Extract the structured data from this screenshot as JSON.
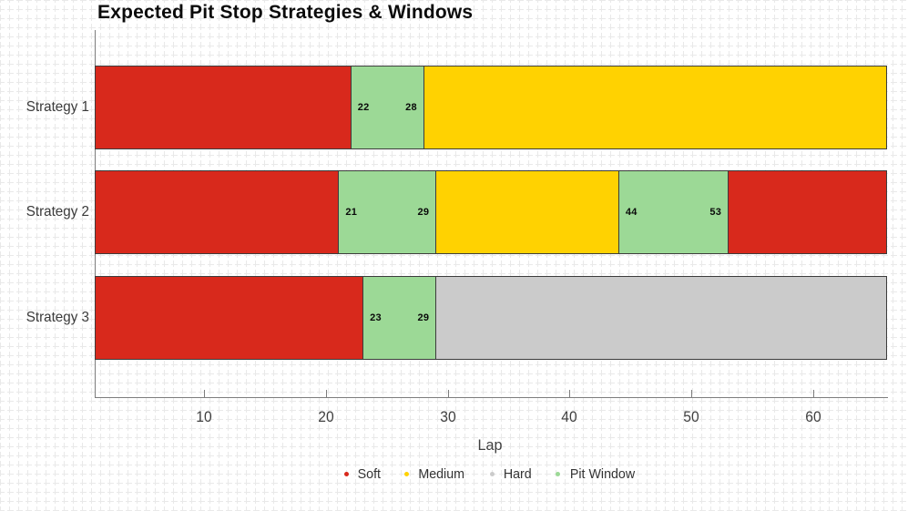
{
  "title": "Expected Pit Stop Strategies & Windows",
  "chart_data": {
    "type": "bar",
    "orientation": "horizontal",
    "stacked": true,
    "title": "Expected Pit Stop Strategies & Windows",
    "xlabel": "Lap",
    "xlim": [
      1,
      66
    ],
    "x_ticks": [
      10,
      20,
      30,
      40,
      50,
      60
    ],
    "grid": false,
    "categories": [
      "Strategy 1",
      "Strategy 2",
      "Strategy 3"
    ],
    "compound_colors": {
      "Soft": "#d8291c",
      "Medium": "#ffd201",
      "Hard": "#cbcbcb",
      "Pit Window": "#9cd996"
    },
    "rows": [
      {
        "category": "Strategy 1",
        "segments": [
          {
            "compound": "Soft",
            "start": 1,
            "end": 22,
            "show_labels": false
          },
          {
            "compound": "Pit Window",
            "start": 22,
            "end": 28,
            "show_labels": true
          },
          {
            "compound": "Medium",
            "start": 28,
            "end": 66,
            "show_labels": false
          }
        ]
      },
      {
        "category": "Strategy 2",
        "segments": [
          {
            "compound": "Soft",
            "start": 1,
            "end": 21,
            "show_labels": false
          },
          {
            "compound": "Pit Window",
            "start": 21,
            "end": 29,
            "show_labels": true
          },
          {
            "compound": "Medium",
            "start": 29,
            "end": 44,
            "show_labels": false
          },
          {
            "compound": "Pit Window",
            "start": 44,
            "end": 53,
            "show_labels": true
          },
          {
            "compound": "Soft",
            "start": 53,
            "end": 66,
            "show_labels": false
          }
        ]
      },
      {
        "category": "Strategy 3",
        "segments": [
          {
            "compound": "Soft",
            "start": 1,
            "end": 23,
            "show_labels": false
          },
          {
            "compound": "Pit Window",
            "start": 23,
            "end": 29,
            "show_labels": true
          },
          {
            "compound": "Hard",
            "start": 29,
            "end": 66,
            "show_labels": false
          }
        ]
      }
    ],
    "legend_position": "bottom"
  },
  "legend": {
    "items": [
      {
        "label": "Soft",
        "color": "#d8291c"
      },
      {
        "label": "Medium",
        "color": "#ffd201"
      },
      {
        "label": "Hard",
        "color": "#cbcbcb"
      },
      {
        "label": "Pit Window",
        "color": "#9cd996"
      }
    ]
  }
}
